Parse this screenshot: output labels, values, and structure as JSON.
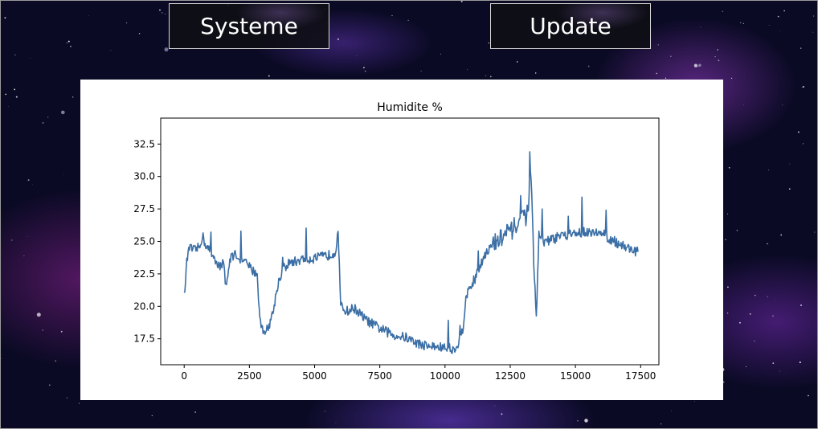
{
  "nav": {
    "systeme_label": "Systeme",
    "update_label": "Update"
  },
  "colors": {
    "line": "#3a6ea5",
    "panel": "#ffffff",
    "background": "#0a0a24"
  },
  "chart_data": {
    "type": "line",
    "title": "Humidite %",
    "xlabel": "",
    "ylabel": "",
    "xlim": [
      -900,
      18200
    ],
    "ylim": [
      15.5,
      34.5
    ],
    "xticks": [
      0,
      2500,
      5000,
      7500,
      10000,
      12500,
      15000,
      17500
    ],
    "yticks": [
      17.5,
      20.0,
      22.5,
      25.0,
      27.5,
      30.0,
      32.5
    ],
    "xtick_labels": [
      "0",
      "2500",
      "5000",
      "7500",
      "10000",
      "12500",
      "15000",
      "17500"
    ],
    "ytick_labels": [
      "17.5",
      "20.0",
      "22.5",
      "25.0",
      "27.5",
      "30.0",
      "32.5"
    ],
    "grid": false,
    "legend": "none",
    "series": [
      {
        "color": "#3a6ea5",
        "x": [
          0,
          100,
          200,
          400,
          600,
          700,
          800,
          1000,
          1200,
          1400,
          1500,
          1600,
          1800,
          2000,
          2200,
          2400,
          2600,
          2800,
          2900,
          3000,
          3200,
          3400,
          3600,
          3800,
          4000,
          4500,
          5000,
          5500,
          5800,
          5900,
          6000,
          6100,
          6300,
          6500,
          7000,
          7500,
          8000,
          8500,
          9000,
          9500,
          10000,
          10300,
          10500,
          10700,
          10800,
          11000,
          11300,
          11500,
          12000,
          12500,
          12800,
          13000,
          13200,
          13300,
          13400,
          13500,
          13600,
          13800,
          14000,
          14500,
          15000,
          15500,
          16000,
          16500,
          17000,
          17400
        ],
        "y": [
          20.8,
          23.5,
          24.5,
          24.3,
          24.6,
          25.5,
          24.8,
          24.2,
          23.6,
          23.0,
          23.5,
          21.6,
          23.9,
          24.0,
          23.5,
          23.3,
          22.8,
          22.5,
          19.0,
          18.2,
          18.2,
          19.5,
          21.8,
          22.9,
          23.3,
          23.6,
          23.7,
          23.9,
          24.2,
          26.0,
          20.0,
          19.8,
          19.6,
          19.9,
          18.9,
          18.3,
          17.8,
          17.6,
          17.1,
          16.9,
          16.8,
          16.7,
          17.0,
          18.5,
          20.8,
          21.5,
          22.8,
          24.0,
          25.0,
          25.8,
          26.3,
          26.7,
          27.2,
          30.5,
          23.5,
          19.0,
          25.6,
          24.8,
          25.1,
          25.4,
          25.6,
          25.8,
          25.6,
          25.0,
          24.5,
          24.2
        ]
      }
    ]
  }
}
